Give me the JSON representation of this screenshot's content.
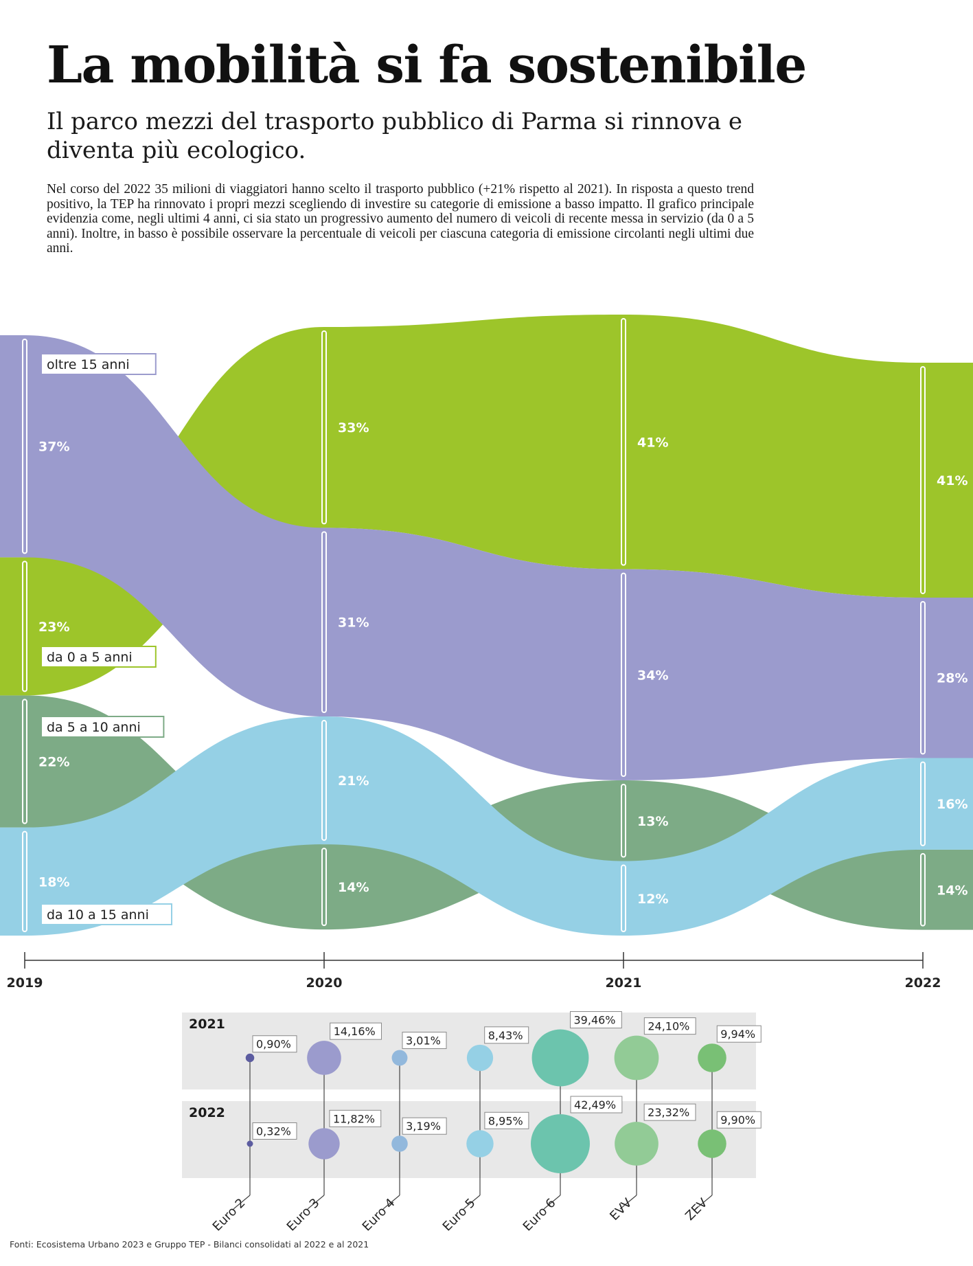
{
  "header": {
    "title": "La mobilità si fa sostenibile",
    "subtitle": "Il parco mezzi del trasporto pubblico di Parma si rinnova e diventa più ecologico.",
    "description": "Nel corso del 2022 35 milioni di viaggiatori hanno scelto il trasporto pubblico  (+21% rispetto al 2021). In risposta a questo trend positivo, la TEP ha rinnovato i propri mezzi scegliendo di investire su categorie di emissione a basso impatto. Il grafico principale evidenzia come, negli ultimi 4 anni, ci sia stato un progressivo aumento del numero di veicoli di recente messa in servizio (da 0 a 5 anni). Inoltre, in basso è possibile osservare la percentuale di veicoli per ciascuna categoria di emissione circolanti negli ultimi due anni."
  },
  "colors": {
    "oltre_15": "#9b9bcd",
    "da_0_5": "#9dc52a",
    "da_5_10": "#7dab86",
    "da_10_15": "#95d0e5",
    "axis": "#333333",
    "panel_bg": "#e8e8e8"
  },
  "chart_data": [
    {
      "type": "area",
      "subtype": "ranked-bump-stream",
      "x": [
        "2019",
        "2020",
        "2021",
        "2022"
      ],
      "series": [
        {
          "key": "oltre_15",
          "name": "oltre 15 anni",
          "values": [
            37,
            31,
            34,
            28
          ],
          "labels": [
            "37%",
            "31%",
            "34%",
            "28%"
          ]
        },
        {
          "key": "da_0_5",
          "name": "da 0 a 5 anni",
          "values": [
            23,
            33,
            41,
            41
          ],
          "labels": [
            "23%",
            "33%",
            "41%",
            "41%"
          ]
        },
        {
          "key": "da_5_10",
          "name": "da 5 a 10 anni",
          "values": [
            22,
            14,
            13,
            14
          ],
          "labels": [
            "22%",
            "14%",
            "13%",
            "14%"
          ]
        },
        {
          "key": "da_10_15",
          "name": "da 10 a 15 anni",
          "values": [
            18,
            21,
            12,
            16
          ],
          "labels": [
            "18%",
            "21%",
            "12%",
            "16%"
          ]
        }
      ],
      "rank_order_top_to_bottom": [
        [
          "oltre_15",
          "da_0_5",
          "da_5_10",
          "da_10_15"
        ],
        [
          "da_0_5",
          "oltre_15",
          "da_10_15",
          "da_5_10"
        ],
        [
          "da_0_5",
          "oltre_15",
          "da_5_10",
          "da_10_15"
        ],
        [
          "da_0_5",
          "oltre_15",
          "da_10_15",
          "da_5_10"
        ]
      ]
    },
    {
      "type": "scatter",
      "subtype": "bubble",
      "years": [
        "2021",
        "2022"
      ],
      "categories": [
        "Euro 2",
        "Euro 3",
        "Euro 4",
        "Euro 5",
        "Euro 6",
        "EVV",
        "ZEV"
      ],
      "series": [
        {
          "name": "2021",
          "values": [
            0.9,
            14.16,
            3.01,
            8.43,
            39.46,
            24.1,
            9.94
          ],
          "labels": [
            "0,90%",
            "14,16%",
            "3,01%",
            "8,43%",
            "39,46%",
            "24,10%",
            "9,94%"
          ]
        },
        {
          "name": "2022",
          "values": [
            0.32,
            11.82,
            3.19,
            8.95,
            42.49,
            23.32,
            9.9
          ],
          "labels": [
            "0,32%",
            "11,82%",
            "3,19%",
            "8,95%",
            "42,49%",
            "23,32%",
            "9,90%"
          ]
        }
      ],
      "colors": [
        "#5c5ca0",
        "#9b9bcd",
        "#92b8dc",
        "#95d0e5",
        "#6cc4ad",
        "#92cb96",
        "#79c075"
      ]
    }
  ],
  "sources": "Fonti: Ecosistema Urbano 2023 e Gruppo TEP - Bilanci consolidati al 2022 e al 2021"
}
